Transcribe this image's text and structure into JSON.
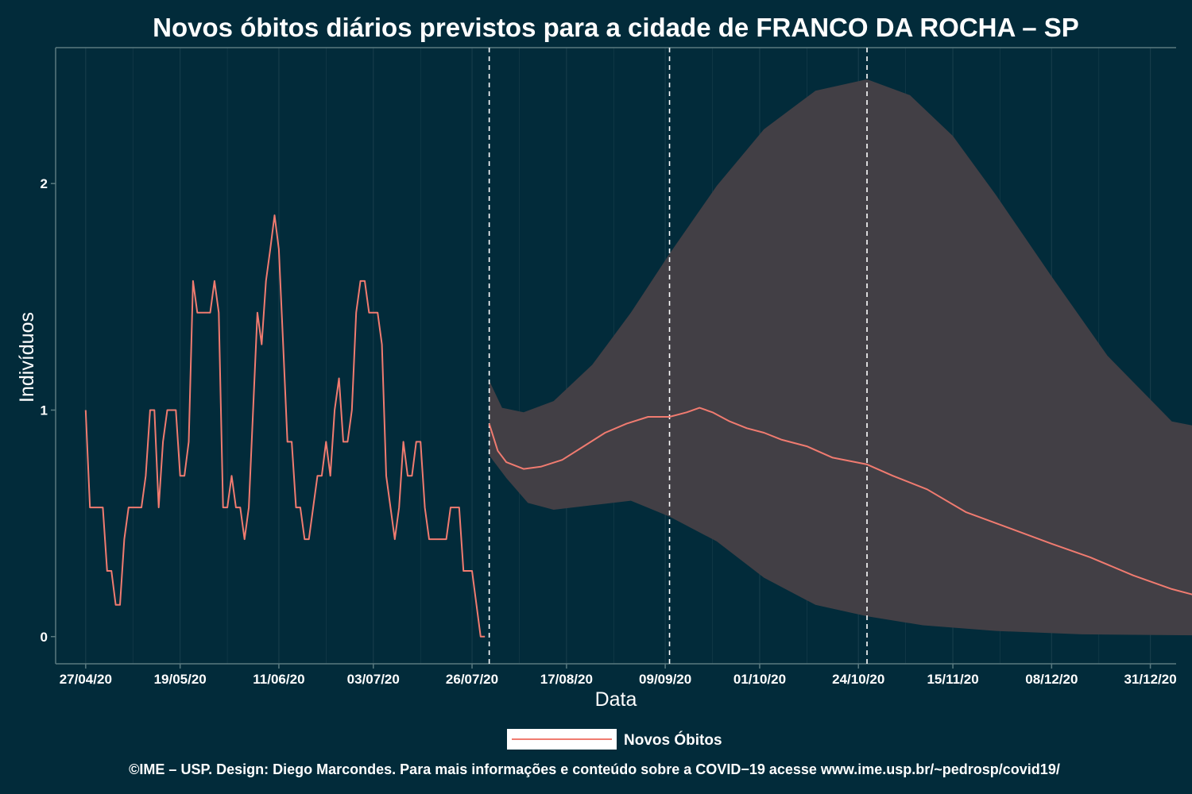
{
  "page": {
    "title": "Novos óbitos diários previstos para a cidade de FRANCO DA ROCHA – SP",
    "footer": "©IME – USP. Design: Diego Marcondes. Para mais informações e conteúdo sobre a COVID−19 acesse www.ime.usp.br/~pedrosp/covid19/"
  },
  "colors": {
    "background": "#022b3a",
    "line": "#f07b70",
    "band": "#423f45",
    "grid": "#163c4a",
    "axis": "#5a7a80",
    "vline": "#ffffff"
  },
  "chart_data": {
    "type": "line",
    "xlabel": "Data",
    "ylabel": "Indivíduos",
    "x_ticks": [
      "27/04/20",
      "19/05/20",
      "11/06/20",
      "03/07/20",
      "26/07/20",
      "17/08/20",
      "09/09/20",
      "01/10/20",
      "24/10/20",
      "15/11/20",
      "08/12/20",
      "31/12/20"
    ],
    "y_ticks": [
      0,
      1,
      2
    ],
    "ylim": [
      -0.12,
      2.6
    ],
    "xlim": [
      "2020-04-20",
      "2021-01-06"
    ],
    "grid": true,
    "vlines": [
      "2020-07-30",
      "2020-09-10",
      "2020-10-26"
    ],
    "legend": {
      "position": "bottom",
      "entries": [
        "Novos Óbitos"
      ]
    },
    "series": [
      {
        "name": "Novos Óbitos",
        "kind": "observed",
        "points": [
          [
            "2020-04-27",
            1.0
          ],
          [
            "2020-04-28",
            0.57
          ],
          [
            "2020-04-30",
            0.57
          ],
          [
            "2020-05-01",
            0.57
          ],
          [
            "2020-05-02",
            0.29
          ],
          [
            "2020-05-03",
            0.29
          ],
          [
            "2020-05-04",
            0.14
          ],
          [
            "2020-05-05",
            0.14
          ],
          [
            "2020-05-06",
            0.43
          ],
          [
            "2020-05-07",
            0.57
          ],
          [
            "2020-05-09",
            0.57
          ],
          [
            "2020-05-10",
            0.57
          ],
          [
            "2020-05-11",
            0.71
          ],
          [
            "2020-05-12",
            1.0
          ],
          [
            "2020-05-13",
            1.0
          ],
          [
            "2020-05-14",
            0.57
          ],
          [
            "2020-05-15",
            0.86
          ],
          [
            "2020-05-16",
            1.0
          ],
          [
            "2020-05-18",
            1.0
          ],
          [
            "2020-05-19",
            0.71
          ],
          [
            "2020-05-20",
            0.71
          ],
          [
            "2020-05-21",
            0.86
          ],
          [
            "2020-05-22",
            1.57
          ],
          [
            "2020-05-23",
            1.43
          ],
          [
            "2020-05-25",
            1.43
          ],
          [
            "2020-05-26",
            1.43
          ],
          [
            "2020-05-27",
            1.57
          ],
          [
            "2020-05-28",
            1.43
          ],
          [
            "2020-05-29",
            0.57
          ],
          [
            "2020-05-30",
            0.57
          ],
          [
            "2020-05-31",
            0.71
          ],
          [
            "2020-06-01",
            0.57
          ],
          [
            "2020-06-02",
            0.57
          ],
          [
            "2020-06-03",
            0.43
          ],
          [
            "2020-06-04",
            0.57
          ],
          [
            "2020-06-05",
            1.0
          ],
          [
            "2020-06-06",
            1.43
          ],
          [
            "2020-06-07",
            1.29
          ],
          [
            "2020-06-08",
            1.57
          ],
          [
            "2020-06-09",
            1.71
          ],
          [
            "2020-06-10",
            1.86
          ],
          [
            "2020-06-11",
            1.71
          ],
          [
            "2020-06-12",
            1.29
          ],
          [
            "2020-06-13",
            0.86
          ],
          [
            "2020-06-14",
            0.86
          ],
          [
            "2020-06-15",
            0.57
          ],
          [
            "2020-06-16",
            0.57
          ],
          [
            "2020-06-17",
            0.43
          ],
          [
            "2020-06-18",
            0.43
          ],
          [
            "2020-06-19",
            0.57
          ],
          [
            "2020-06-20",
            0.71
          ],
          [
            "2020-06-21",
            0.71
          ],
          [
            "2020-06-22",
            0.86
          ],
          [
            "2020-06-23",
            0.71
          ],
          [
            "2020-06-24",
            1.0
          ],
          [
            "2020-06-25",
            1.14
          ],
          [
            "2020-06-26",
            0.86
          ],
          [
            "2020-06-27",
            0.86
          ],
          [
            "2020-06-28",
            1.0
          ],
          [
            "2020-06-29",
            1.43
          ],
          [
            "2020-06-30",
            1.57
          ],
          [
            "2020-07-01",
            1.57
          ],
          [
            "2020-07-02",
            1.43
          ],
          [
            "2020-07-04",
            1.43
          ],
          [
            "2020-07-05",
            1.29
          ],
          [
            "2020-07-06",
            0.71
          ],
          [
            "2020-07-07",
            0.57
          ],
          [
            "2020-07-08",
            0.43
          ],
          [
            "2020-07-09",
            0.57
          ],
          [
            "2020-07-10",
            0.86
          ],
          [
            "2020-07-11",
            0.71
          ],
          [
            "2020-07-12",
            0.71
          ],
          [
            "2020-07-13",
            0.86
          ],
          [
            "2020-07-14",
            0.86
          ],
          [
            "2020-07-15",
            0.57
          ],
          [
            "2020-07-16",
            0.43
          ],
          [
            "2020-07-17",
            0.43
          ],
          [
            "2020-07-20",
            0.43
          ],
          [
            "2020-07-21",
            0.57
          ],
          [
            "2020-07-22",
            0.57
          ],
          [
            "2020-07-23",
            0.57
          ],
          [
            "2020-07-24",
            0.29
          ],
          [
            "2020-07-25",
            0.29
          ],
          [
            "2020-07-26",
            0.29
          ],
          [
            "2020-07-28",
            0.0
          ],
          [
            "2020-07-29",
            0.0
          ]
        ]
      },
      {
        "name": "Novos Óbitos",
        "kind": "predicted",
        "points": [
          [
            "2020-07-30",
            0.94
          ],
          [
            "2020-08-01",
            0.82
          ],
          [
            "2020-08-03",
            0.77
          ],
          [
            "2020-08-07",
            0.74
          ],
          [
            "2020-08-11",
            0.75
          ],
          [
            "2020-08-16",
            0.78
          ],
          [
            "2020-08-21",
            0.84
          ],
          [
            "2020-08-26",
            0.9
          ],
          [
            "2020-08-31",
            0.94
          ],
          [
            "2020-09-05",
            0.97
          ],
          [
            "2020-09-10",
            0.97
          ],
          [
            "2020-09-14",
            0.99
          ],
          [
            "2020-09-17",
            1.01
          ],
          [
            "2020-09-20",
            0.99
          ],
          [
            "2020-09-24",
            0.95
          ],
          [
            "2020-09-28",
            0.92
          ],
          [
            "2020-10-02",
            0.9
          ],
          [
            "2020-10-06",
            0.87
          ],
          [
            "2020-10-12",
            0.84
          ],
          [
            "2020-10-18",
            0.79
          ],
          [
            "2020-10-26",
            0.76
          ],
          [
            "2020-11-01",
            0.71
          ],
          [
            "2020-11-09",
            0.65
          ],
          [
            "2020-11-18",
            0.55
          ],
          [
            "2020-11-28",
            0.48
          ],
          [
            "2020-12-08",
            0.41
          ],
          [
            "2020-12-17",
            0.35
          ],
          [
            "2020-12-27",
            0.27
          ],
          [
            "2021-01-05",
            0.21
          ],
          [
            "2021-01-13",
            0.17
          ]
        ]
      }
    ],
    "ribbon": {
      "upper": [
        [
          "2020-07-30",
          1.13
        ],
        [
          "2020-08-02",
          1.01
        ],
        [
          "2020-08-07",
          0.99
        ],
        [
          "2020-08-14",
          1.04
        ],
        [
          "2020-08-23",
          1.2
        ],
        [
          "2020-09-01",
          1.43
        ],
        [
          "2020-09-10",
          1.69
        ],
        [
          "2020-09-21",
          1.99
        ],
        [
          "2020-10-02",
          2.24
        ],
        [
          "2020-10-14",
          2.41
        ],
        [
          "2020-10-26",
          2.46
        ],
        [
          "2020-11-05",
          2.39
        ],
        [
          "2020-11-15",
          2.21
        ],
        [
          "2020-11-25",
          1.95
        ],
        [
          "2020-12-08",
          1.59
        ],
        [
          "2020-12-21",
          1.24
        ],
        [
          "2021-01-05",
          0.95
        ],
        [
          "2021-01-13",
          0.92
        ]
      ],
      "lower": [
        [
          "2020-07-30",
          0.8
        ],
        [
          "2020-08-03",
          0.7
        ],
        [
          "2020-08-08",
          0.59
        ],
        [
          "2020-08-14",
          0.56
        ],
        [
          "2020-08-23",
          0.58
        ],
        [
          "2020-09-01",
          0.6
        ],
        [
          "2020-09-10",
          0.53
        ],
        [
          "2020-09-21",
          0.42
        ],
        [
          "2020-10-02",
          0.26
        ],
        [
          "2020-10-14",
          0.14
        ],
        [
          "2020-10-26",
          0.09
        ],
        [
          "2020-11-08",
          0.05
        ],
        [
          "2020-11-25",
          0.025
        ],
        [
          "2020-12-15",
          0.01
        ],
        [
          "2021-01-13",
          0.005
        ]
      ]
    }
  }
}
